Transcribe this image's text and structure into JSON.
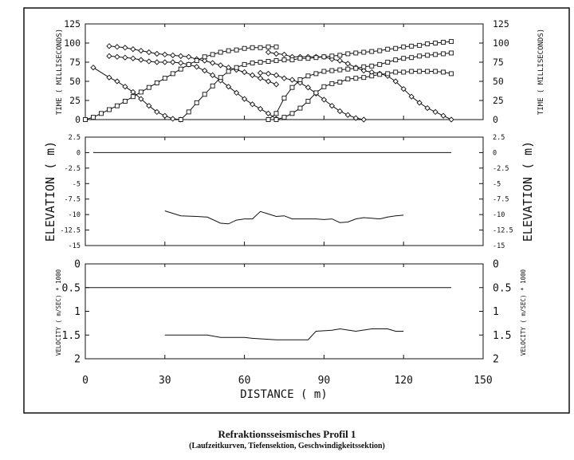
{
  "figure": {
    "caption_title": "Refraktionsseismisches Profil 1",
    "caption_subtitle": "(Laufzeitkurven, Tiefensektion, Geschwindigkeitssektion)",
    "x_axis_label": "DISTANCE ( m)"
  },
  "chart_data": [
    {
      "type": "line",
      "panel": "traveltime",
      "ylabel": "TIME ( MILLISECONDS)",
      "xlim": [
        0,
        150
      ],
      "ylim": [
        0,
        125
      ],
      "yticks": [
        0,
        25,
        50,
        75,
        100,
        125
      ],
      "ytick_labels": [
        "0",
        "25",
        "50",
        "75",
        "100",
        "125"
      ],
      "marker_styles": [
        "diamond",
        "square"
      ],
      "series": [
        {
          "marker": "diamond",
          "x": [
            3,
            9,
            12,
            15,
            18,
            21,
            24,
            27,
            30,
            33,
            36
          ],
          "y": [
            68,
            55,
            50,
            43,
            36,
            27,
            18,
            10,
            5,
            1,
            0
          ]
        },
        {
          "marker": "diamond",
          "x": [
            9,
            12,
            15,
            18,
            21,
            24,
            27,
            30,
            33,
            36,
            39,
            42,
            45,
            48,
            51,
            54,
            57,
            60,
            63,
            66,
            69,
            72
          ],
          "y": [
            96,
            95,
            94,
            92,
            90,
            88,
            86,
            85,
            84,
            83,
            82,
            79,
            77,
            74,
            71,
            68,
            65,
            62,
            58,
            54,
            50,
            46
          ]
        },
        {
          "marker": "diamond",
          "x": [
            9,
            12,
            15,
            18,
            21,
            24,
            27,
            30,
            33,
            36,
            39,
            42,
            45,
            48,
            51,
            54,
            57,
            60,
            63,
            66,
            69,
            72
          ],
          "y": [
            83,
            82,
            81,
            80,
            78,
            76,
            75,
            75,
            75,
            74,
            72,
            69,
            64,
            58,
            51,
            43,
            35,
            27,
            20,
            14,
            8,
            1
          ]
        },
        {
          "marker": "diamond",
          "x": [
            69,
            72,
            75,
            78,
            81,
            84,
            87,
            90,
            93,
            96,
            99,
            102,
            105,
            108,
            111,
            114,
            117,
            120,
            123,
            126,
            129,
            132,
            135,
            138
          ],
          "y": [
            88,
            86,
            85,
            82,
            82,
            82,
            82,
            82,
            79,
            77,
            73,
            68,
            64,
            62,
            60,
            57,
            50,
            40,
            30,
            22,
            15,
            10,
            5,
            0
          ]
        },
        {
          "marker": "diamond",
          "x": [
            66,
            69,
            72,
            75,
            78,
            81,
            84,
            87,
            90,
            93,
            96,
            99,
            102,
            105
          ],
          "y": [
            61,
            60,
            58,
            54,
            52,
            48,
            42,
            34,
            26,
            18,
            11,
            6,
            2,
            0
          ]
        },
        {
          "marker": "square",
          "x": [
            0,
            3,
            6,
            9,
            12,
            15,
            18,
            21,
            24,
            27,
            30,
            33,
            36,
            39,
            42,
            45,
            48,
            51,
            54,
            57,
            60,
            63,
            66,
            69,
            72
          ],
          "y": [
            0,
            3,
            8,
            13,
            18,
            24,
            30,
            36,
            42,
            48,
            54,
            60,
            66,
            72,
            77,
            82,
            85,
            88,
            90,
            91,
            93,
            94,
            94,
            95,
            95
          ]
        },
        {
          "marker": "square",
          "x": [
            36,
            39,
            42,
            45,
            48,
            51,
            54,
            57,
            60,
            63,
            66,
            69,
            72,
            75,
            78,
            81,
            84,
            87,
            90,
            93,
            96,
            99,
            102,
            105,
            108,
            111,
            114,
            117,
            120,
            123,
            126,
            129,
            132,
            135,
            138
          ],
          "y": [
            0,
            10,
            22,
            33,
            44,
            55,
            63,
            68,
            72,
            74,
            75,
            76,
            77,
            78,
            78,
            80,
            80,
            81,
            82,
            83,
            84,
            86,
            87,
            88,
            89,
            90,
            92,
            93,
            95,
            96,
            97,
            99,
            100,
            101,
            102
          ]
        },
        {
          "marker": "square",
          "x": [
            69,
            72,
            75,
            78,
            81,
            84,
            87,
            90,
            93,
            96,
            99,
            102,
            105,
            108,
            111,
            114,
            117,
            120,
            123,
            126,
            129,
            132,
            135,
            138
          ],
          "y": [
            0,
            8,
            28,
            42,
            52,
            57,
            60,
            63,
            64,
            65,
            66,
            67,
            69,
            70,
            72,
            75,
            78,
            80,
            81,
            83,
            84,
            85,
            86,
            87
          ]
        },
        {
          "marker": "square",
          "x": [
            72,
            75,
            78,
            81,
            84,
            87,
            90,
            93,
            96,
            99,
            102,
            105,
            108,
            111,
            114,
            117,
            120,
            123,
            126,
            129,
            132,
            135,
            138
          ],
          "y": [
            0,
            3,
            8,
            15,
            24,
            35,
            43,
            47,
            49,
            53,
            54,
            55,
            57,
            59,
            60,
            62,
            62,
            63,
            63,
            63,
            63,
            62,
            60
          ]
        }
      ]
    },
    {
      "type": "line",
      "panel": "elevation",
      "ylabel": "ELEVATION ( m)",
      "xlim": [
        0,
        150
      ],
      "ylim": [
        -15,
        2.5
      ],
      "yticks": [
        2.5,
        0,
        -2.5,
        -5,
        -7.5,
        -10,
        -12.5,
        -15
      ],
      "ytick_labels": [
        "2.5",
        "0",
        "-2.5",
        "-5",
        "-7.5",
        "-10",
        "-12.5",
        "-15"
      ],
      "series": [
        {
          "x": [
            3,
            138
          ],
          "y": [
            0,
            0
          ]
        },
        {
          "x": [
            30,
            36,
            42,
            46,
            51,
            54,
            57,
            60,
            63,
            66,
            69,
            72,
            75,
            78,
            81,
            84,
            87,
            90,
            93,
            96,
            99,
            102,
            105,
            108,
            111,
            114,
            117,
            120
          ],
          "y": [
            -9.4,
            -10.2,
            -10.3,
            -10.4,
            -11.4,
            -11.5,
            -10.9,
            -10.7,
            -10.7,
            -9.5,
            -9.9,
            -10.3,
            -10.2,
            -10.7,
            -10.7,
            -10.7,
            -10.7,
            -10.8,
            -10.7,
            -11.3,
            -11.2,
            -10.7,
            -10.5,
            -10.6,
            -10.7,
            -10.4,
            -10.2,
            -10.1
          ]
        }
      ]
    },
    {
      "type": "line",
      "panel": "velocity",
      "ylabel": "VELOCITY ( m/SEC) * 1000",
      "xlim": [
        0,
        150
      ],
      "ylim": [
        0,
        2
      ],
      "yticks": [
        0,
        0.5,
        1,
        1.5,
        2
      ],
      "ytick_labels": [
        "0",
        "0.5",
        "1",
        "1.5",
        "2"
      ],
      "series": [
        {
          "x": [
            0,
            138
          ],
          "y": [
            0.5,
            0.5
          ]
        },
        {
          "x": [
            30,
            42,
            46,
            51,
            60,
            63,
            72,
            75,
            84,
            87,
            93,
            96,
            102,
            108,
            114,
            117,
            120
          ],
          "y": [
            1.5,
            1.5,
            1.5,
            1.55,
            1.55,
            1.57,
            1.6,
            1.6,
            1.6,
            1.42,
            1.4,
            1.37,
            1.42,
            1.37,
            1.37,
            1.42,
            1.42
          ]
        }
      ]
    }
  ],
  "x_axis": {
    "ticks": [
      0,
      30,
      60,
      90,
      120,
      150
    ],
    "tick_labels": [
      "0",
      "30",
      "60",
      "90",
      "120",
      "150"
    ]
  }
}
